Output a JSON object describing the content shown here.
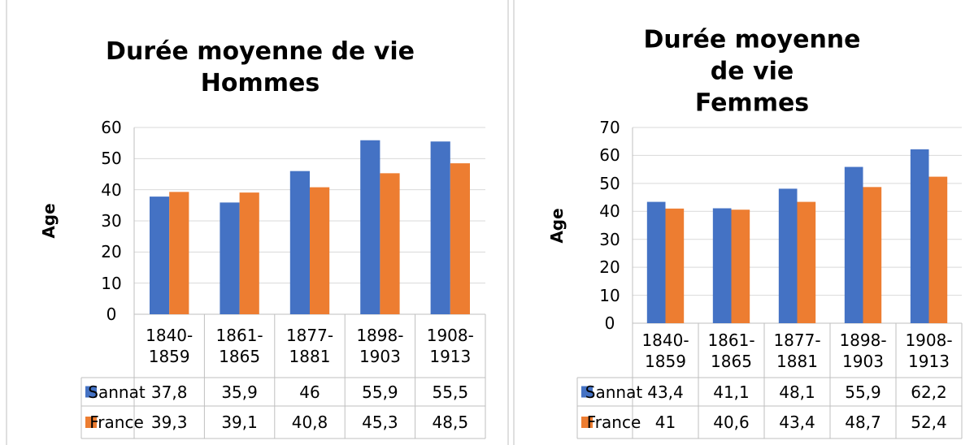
{
  "chart_data": [
    {
      "type": "bar",
      "title": "Durée moyenne de vie\nHommes",
      "ylabel": "Age",
      "categories": [
        "1840-\n1859",
        "1861-\n1865",
        "1877-\n1881",
        "1898-\n1903",
        "1908-\n1913"
      ],
      "series": [
        {
          "name": "Sannat",
          "color": "#4472c4",
          "values": [
            37.8,
            35.9,
            46,
            55.9,
            55.5
          ],
          "value_labels": [
            "37,8",
            "35,9",
            "46",
            "55,9",
            "55,5"
          ]
        },
        {
          "name": "France",
          "color": "#ed7d31",
          "values": [
            39.3,
            39.1,
            40.8,
            45.3,
            48.5
          ],
          "value_labels": [
            "39,3",
            "39,1",
            "40,8",
            "45,3",
            "48,5"
          ]
        }
      ],
      "ylim": [
        0,
        60
      ],
      "yticks": [
        0,
        10,
        20,
        30,
        40,
        50,
        60
      ],
      "grid": true
    },
    {
      "type": "bar",
      "title": "Durée moyenne de vie\nFemmes",
      "ylabel": "Age",
      "categories": [
        "1840-\n1859",
        "1861-\n1865",
        "1877-\n1881",
        "1898-\n1903",
        "1908-\n1913"
      ],
      "series": [
        {
          "name": "Sannat",
          "color": "#4472c4",
          "values": [
            43.4,
            41.1,
            48.1,
            55.9,
            62.2
          ],
          "value_labels": [
            "43,4",
            "41,1",
            "48,1",
            "55,9",
            "62,2"
          ]
        },
        {
          "name": "France",
          "color": "#ed7d31",
          "values": [
            41,
            40.6,
            43.4,
            48.7,
            52.4
          ],
          "value_labels": [
            "41",
            "40,6",
            "43,4",
            "48,7",
            "52,4"
          ]
        }
      ],
      "ylim": [
        0,
        70
      ],
      "yticks": [
        0,
        10,
        20,
        30,
        40,
        50,
        60,
        70
      ],
      "grid": true
    }
  ]
}
